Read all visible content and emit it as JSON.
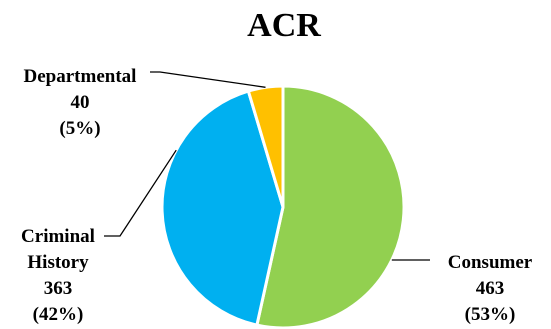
{
  "chart_data": {
    "type": "pie",
    "title": "ACR",
    "slices": [
      {
        "key": "consumer",
        "name": "Consumer",
        "value": 463,
        "percent_label": "(53%)",
        "color": "#92D050"
      },
      {
        "key": "criminal",
        "name": "Criminal History",
        "name_lines": [
          "Criminal",
          "History"
        ],
        "value": 363,
        "percent_label": "(42%)",
        "color": "#00B0F0"
      },
      {
        "key": "departmental",
        "name": "Departmental",
        "value": 40,
        "percent_label": "(5%)",
        "color": "#FFC000"
      }
    ],
    "start_angle": "12 o'clock",
    "direction": "clockwise",
    "legend": "none",
    "data_labels": "outside with leader lines"
  }
}
